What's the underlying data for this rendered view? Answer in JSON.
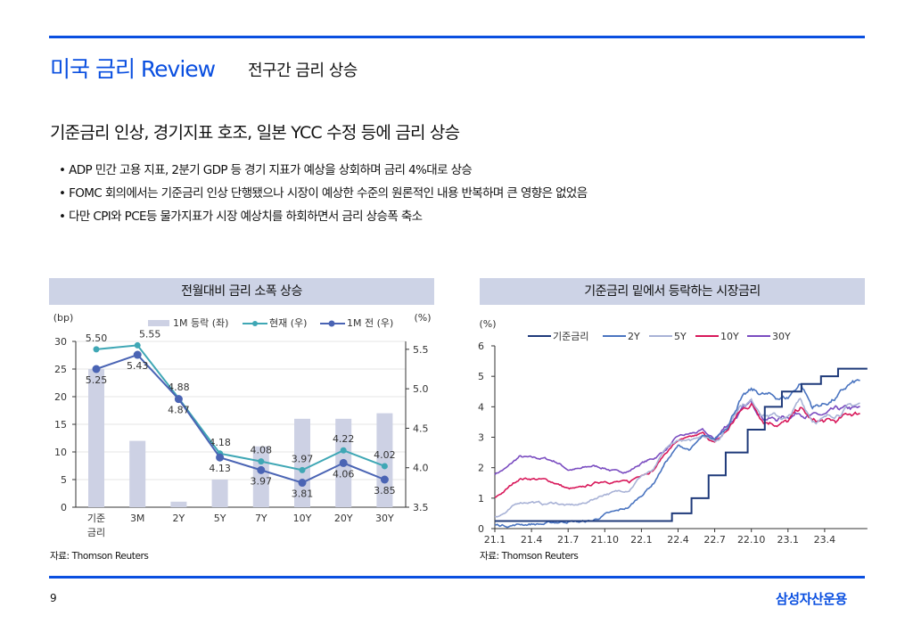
{
  "header": {
    "title": "미국 금리 Review",
    "subtitle": "전구간 금리 상승"
  },
  "headline": "기준금리 인상, 경기지표 호조, 일본 YCC 수정 등에 금리 상승",
  "bullets": [
    "ADP 민간 고용 지표, 2분기 GDP 등 경기 지표가 예상을 상회하며 금리 4%대로 상승",
    "FOMC 회의에서는 기준금리 인상 단행됐으나 시장이 예상한 수준의 원론적인 내용 반복하며 큰 영향은 없었음",
    "다만 CPI와 PCE등 물가지표가 시장 예상치를 하회하면서 금리 상승폭 축소"
  ],
  "left_panel": {
    "title": "전월대비 금리 소폭 상승",
    "source": "자료: Thomson Reuters"
  },
  "right_panel": {
    "title": "기준금리 밑에서 등락하는 시장금리",
    "source": "자료: Thomson Reuters"
  },
  "footer": {
    "page": "9",
    "company": "삼성자산운용"
  },
  "colors": {
    "brand": "#0a4fe0",
    "bar": "#cdd1e4",
    "current": "#3fa7b5",
    "prev": "#4a64b4",
    "fed": "#1f3a7a",
    "y2": "#4a74c0",
    "y5": "#a8b2d6",
    "y10": "#d8185a",
    "y30": "#7a4cc0"
  },
  "chart_data": [
    {
      "type": "bar+line",
      "title": "전월대비 금리 소폭 상승",
      "ylabel_left": "(bp)",
      "ylabel_right": "(%)",
      "ylim_left": [
        0,
        30
      ],
      "ylim_right": [
        3.5,
        5.5
      ],
      "yticks_left": [
        "0",
        "5",
        "10",
        "15",
        "20",
        "25",
        "30"
      ],
      "yticks_right": [
        "3.5",
        "4.0",
        "4.5",
        "5.0",
        "5.5"
      ],
      "categories": [
        "기준\n금리",
        "3M",
        "2Y",
        "5Y",
        "7Y",
        "10Y",
        "20Y",
        "30Y"
      ],
      "legend": [
        "1M 등락 (좌)",
        "현재 (우)",
        "1M 전 (우)"
      ],
      "series": [
        {
          "name": "1M 등락 (좌)",
          "type": "bar",
          "values": [
            25,
            12,
            1,
            5,
            11,
            16,
            16,
            17
          ]
        },
        {
          "name": "현재 (우)",
          "type": "line",
          "values": [
            5.5,
            5.55,
            4.88,
            4.18,
            4.08,
            3.97,
            4.22,
            4.02
          ],
          "labels": [
            "5.50",
            "5.55",
            "4.88",
            "4.18",
            "4.08",
            "3.97",
            "4.22",
            "4.02"
          ]
        },
        {
          "name": "1M 전 (우)",
          "type": "line",
          "values": [
            5.25,
            5.43,
            4.87,
            4.13,
            3.97,
            3.81,
            4.06,
            3.85
          ],
          "labels": [
            "5.25",
            "5.43",
            "4.87",
            "4.13",
            "3.97",
            "3.81",
            "4.06",
            "3.85"
          ]
        }
      ]
    },
    {
      "type": "line",
      "title": "기준금리 밑에서 등락하는 시장금리",
      "ylabel": "(%)",
      "ylim": [
        0,
        6
      ],
      "yticks": [
        "0",
        "1",
        "2",
        "3",
        "4",
        "5",
        "6"
      ],
      "xticks": [
        "21.1",
        "21.4",
        "21.7",
        "21.10",
        "22.1",
        "22.4",
        "22.7",
        "22.10",
        "23.1",
        "23.4"
      ],
      "x_unit": "months since 2021-01",
      "legend": [
        "기준금리",
        "2Y",
        "5Y",
        "10Y",
        "30Y"
      ],
      "fed_steps": [
        [
          0,
          0.25
        ],
        [
          14.5,
          0.5
        ],
        [
          16.1,
          1.0
        ],
        [
          17.5,
          1.75
        ],
        [
          18.9,
          2.5
        ],
        [
          20.7,
          3.25
        ],
        [
          22.1,
          4.0
        ],
        [
          23.5,
          4.5
        ],
        [
          25.1,
          4.75
        ],
        [
          26.7,
          5.0
        ],
        [
          28.1,
          5.25
        ],
        [
          30.5,
          5.25
        ]
      ],
      "series_monthly": {
        "2Y": [
          0.12,
          0.11,
          0.14,
          0.16,
          0.15,
          0.2,
          0.25,
          0.22,
          0.25,
          0.45,
          0.55,
          0.7,
          1.1,
          1.5,
          2.2,
          2.7,
          2.6,
          3.0,
          2.9,
          3.4,
          4.2,
          4.5,
          4.4,
          4.3,
          4.3,
          4.8,
          4.0,
          4.1,
          4.3,
          4.7,
          4.85
        ],
        "5Y": [
          0.4,
          0.55,
          0.85,
          0.9,
          0.8,
          0.85,
          0.75,
          0.78,
          0.95,
          1.15,
          1.2,
          1.3,
          1.75,
          1.9,
          2.6,
          2.9,
          2.85,
          3.1,
          2.9,
          3.3,
          4.1,
          4.2,
          3.8,
          3.7,
          3.6,
          4.2,
          3.6,
          3.6,
          3.8,
          4.0,
          4.1
        ],
        "10Y": [
          1.0,
          1.3,
          1.65,
          1.65,
          1.6,
          1.5,
          1.3,
          1.3,
          1.45,
          1.58,
          1.55,
          1.5,
          1.8,
          1.95,
          2.5,
          2.9,
          2.95,
          3.1,
          2.8,
          3.2,
          3.8,
          4.1,
          3.6,
          3.5,
          3.5,
          3.95,
          3.5,
          3.5,
          3.5,
          3.75,
          3.8
        ],
        "30Y": [
          1.8,
          2.0,
          2.35,
          2.3,
          2.3,
          2.2,
          1.95,
          1.95,
          2.05,
          2.0,
          1.85,
          1.9,
          2.15,
          2.3,
          2.6,
          3.0,
          3.1,
          3.2,
          2.9,
          3.4,
          3.8,
          4.1,
          3.7,
          3.6,
          3.7,
          3.85,
          3.7,
          3.7,
          3.85,
          3.9,
          3.9
        ]
      }
    }
  ]
}
